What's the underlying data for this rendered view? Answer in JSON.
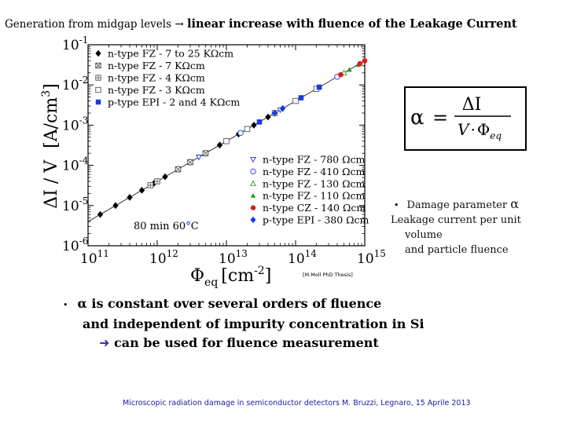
{
  "header": {
    "prefix": "Generation from midgap levels",
    "arrow": "→",
    "bold": "linear increase with fluence of the Leakage Current"
  },
  "chart_data": {
    "type": "scatter",
    "xlabel_main": "Φ",
    "xlabel_sub": "eq",
    "xlabel_unit": "[cm",
    "xlabel_exp": "-2",
    "xlabel_close": "]",
    "ylabel_main": "ΔI / V",
    "ylabel_unit": "[A/cm",
    "ylabel_exp": "3",
    "ylabel_close": "]",
    "x_scale": "log",
    "y_scale": "log",
    "xlim": [
      100000000000.0,
      1000000000000000.0
    ],
    "ylim": [
      1e-06,
      0.1
    ],
    "x_ticks": [
      {
        "base": "10",
        "exp": "11",
        "value": 100000000000.0
      },
      {
        "base": "10",
        "exp": "12",
        "value": 1000000000000.0
      },
      {
        "base": "10",
        "exp": "13",
        "value": 10000000000000.0
      },
      {
        "base": "10",
        "exp": "14",
        "value": 100000000000000.0
      },
      {
        "base": "10",
        "exp": "15",
        "value": 1000000000000000.0
      }
    ],
    "y_ticks": [
      {
        "base": "10",
        "exp": "-1",
        "value": 0.1
      },
      {
        "base": "10",
        "exp": "-2",
        "value": 0.01
      },
      {
        "base": "10",
        "exp": "-3",
        "value": 0.001
      },
      {
        "base": "10",
        "exp": "-4",
        "value": 0.0001
      },
      {
        "base": "10",
        "exp": "-5",
        "value": 1e-05
      },
      {
        "base": "10",
        "exp": "-6",
        "value": 1e-06
      }
    ],
    "fit_line": {
      "slope_alpha": 4e-17,
      "x_range": [
        100000000000.0,
        1000000000000000.0
      ]
    },
    "legend_left": [
      {
        "label": "n-type FZ - 7 to 25 KΩcm",
        "marker": "diamond",
        "color": "#000000"
      },
      {
        "label": "n-type FZ - 7 KΩcm",
        "marker": "square-x",
        "color": "#444444"
      },
      {
        "label": "n-type FZ - 4 KΩcm",
        "marker": "square-cross",
        "color": "#555555"
      },
      {
        "label": "n-type FZ - 3 KΩcm",
        "marker": "square-open",
        "color": "#555555"
      },
      {
        "label": "p-type EPI - 2 and 4 KΩcm",
        "marker": "square-filled",
        "color": "#1a3adf"
      }
    ],
    "legend_right": [
      {
        "label": "n-type FZ - 780 Ωcm",
        "marker": "triangle-down-open",
        "color": "#1a3adf"
      },
      {
        "label": "n-type FZ - 410 Ωcm",
        "marker": "circle-open",
        "color": "#1a3adf"
      },
      {
        "label": "n-type FZ - 130 Ωcm",
        "marker": "triangle-open",
        "color": "#2e9e2e"
      },
      {
        "label": "n-type FZ - 110 Ωcm",
        "marker": "triangle-filled",
        "color": "#1f9a1f"
      },
      {
        "label": "n-type CZ - 140 Ωcm",
        "marker": "circle-filled",
        "color": "#d42020"
      },
      {
        "label": "p-type EPI - 380 Ωcm",
        "marker": "diamond",
        "color": "#1a3adf"
      }
    ],
    "series": [
      {
        "marker": "diamond",
        "color": "#000000",
        "x": [
          150000000000.0,
          250000000000.0,
          400000000000.0,
          600000000000.0,
          900000000000.0,
          1300000000000.0,
          2000000000000.0,
          3000000000000.0,
          5000000000000.0,
          8000000000000.0,
          15000000000000.0,
          25000000000000.0,
          40000000000000.0
        ],
        "y": [
          6e-06,
          1e-05,
          1.6e-05,
          2.4e-05,
          3.6e-05,
          5.2e-05,
          8e-05,
          0.00012,
          0.0002,
          0.00032,
          0.0006,
          0.001,
          0.0016
        ]
      },
      {
        "marker": "square-x",
        "color": "#444444",
        "x": [
          2000000000000.0,
          3000000000000.0,
          5000000000000.0
        ],
        "y": [
          8e-05,
          0.00012,
          0.0002
        ]
      },
      {
        "marker": "square-cross",
        "color": "#555555",
        "x": [
          800000000000.0,
          1000000000000.0
        ],
        "y": [
          3.2e-05,
          4e-05
        ]
      },
      {
        "marker": "square-open",
        "color": "#555555",
        "x": [
          10000000000000.0,
          20000000000000.0,
          50000000000000.0,
          100000000000000.0,
          200000000000000.0
        ],
        "y": [
          0.0004,
          0.0008,
          0.002,
          0.004,
          0.008
        ]
      },
      {
        "marker": "square-filled",
        "color": "#1a3adf",
        "x": [
          30000000000000.0,
          120000000000000.0,
          220000000000000.0
        ],
        "y": [
          0.0012,
          0.0048,
          0.0088
        ]
      },
      {
        "marker": "triangle-down-open",
        "color": "#1a3adf",
        "x": [
          4000000000000.0,
          60000000000000.0
        ],
        "y": [
          0.00016,
          0.0024
        ]
      },
      {
        "marker": "circle-open",
        "color": "#1a3adf",
        "x": [
          16000000000000.0,
          400000000000000.0
        ],
        "y": [
          0.00064,
          0.016
        ]
      },
      {
        "marker": "triangle-open",
        "color": "#2e9e2e",
        "x": [
          500000000000000.0
        ],
        "y": [
          0.02
        ]
      },
      {
        "marker": "triangle-filled",
        "color": "#1f9a1f",
        "x": [
          600000000000000.0,
          800000000000000.0
        ],
        "y": [
          0.024,
          0.032
        ]
      },
      {
        "marker": "circle-filled",
        "color": "#d42020",
        "x": [
          450000000000000.0,
          850000000000000.0,
          1000000000000000.0
        ],
        "y": [
          0.018,
          0.034,
          0.04
        ]
      },
      {
        "marker": "diamond",
        "color": "#1a3adf",
        "x": [
          50000000000000.0,
          65000000000000.0
        ],
        "y": [
          0.002,
          0.0026
        ]
      }
    ]
  },
  "annotations": {
    "anneal_text": "80 min 60",
    "anneal_unit": "C",
    "degree": "°",
    "thesis": "[M.Moll PhD Thesis]"
  },
  "formula": {
    "alpha": "α",
    "equals": "=",
    "numerator": "ΔI",
    "denominator_v": "V",
    "denominator_dot": "·",
    "denominator_phi": "Φ",
    "denominator_sub": "eq"
  },
  "damage": {
    "bullet": "•",
    "line1": "Damage parameter",
    "alpha": "α",
    "line2": "Leakage current per unit",
    "line3": "volume",
    "line4": "and particle fluence"
  },
  "conclusion": {
    "bullet": "•",
    "alpha": "α",
    "line1": "is constant over several orders of fluence",
    "line2": "and independent of impurity concentration in Si",
    "arrow_glyph": "➜",
    "line3": "can be used for fluence measurement"
  },
  "footer": {
    "text": "Microscopic radiation damage in semiconductor detectors  M. Bruzzi, Legnaro, 15 Aprile 2013"
  }
}
